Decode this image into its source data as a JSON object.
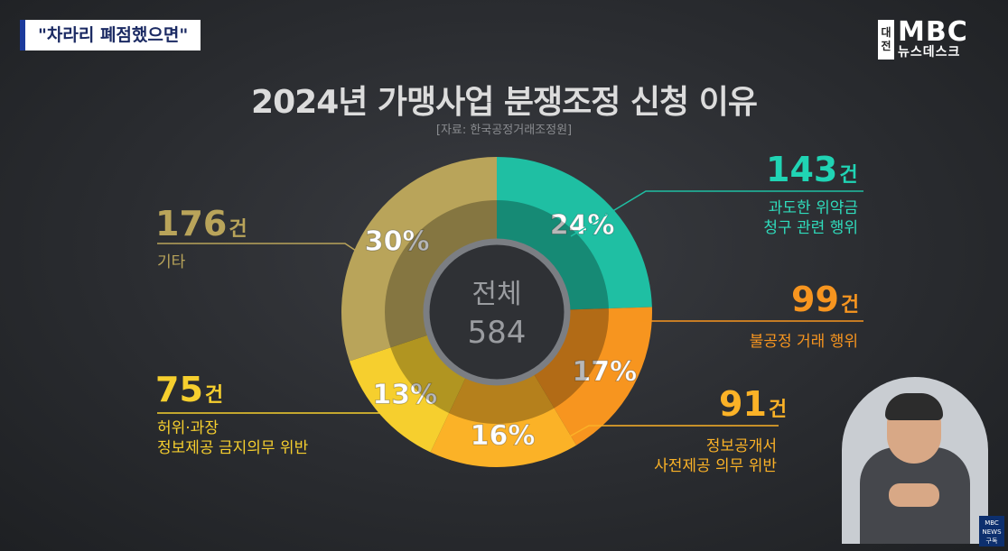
{
  "caption": "\"차라리 폐점했으면\"",
  "logo": {
    "region": [
      "대",
      "전"
    ],
    "brand": "MBC",
    "program": "뉴스데스크"
  },
  "chart_data": {
    "type": "pie",
    "title": "2024년 가맹사업 분쟁조정 신청 이유",
    "source": "[자료: 한국공정거래조정원]",
    "center_label": "전체",
    "total": 584,
    "slices": [
      {
        "label_lines": [
          "과도한 위약금",
          "청구 관련 행위"
        ],
        "count": 143,
        "count_text": "143",
        "percent": 24,
        "color": "#1fbfa3"
      },
      {
        "label_lines": [
          "불공정 거래 행위"
        ],
        "count": 99,
        "count_text": "99",
        "percent": 17,
        "color": "#f7951f"
      },
      {
        "label_lines": [
          "정보공개서",
          "사전제공 의무 위반"
        ],
        "count": 91,
        "count_text": "91",
        "percent": 16,
        "color": "#fbb227"
      },
      {
        "label_lines": [
          "허위·과장",
          "정보제공 금지의무 위반"
        ],
        "count": 75,
        "count_text": "75",
        "percent": 13,
        "color": "#f6cf2e"
      },
      {
        "label_lines": [
          "기타"
        ],
        "count": 176,
        "count_text": "176",
        "percent": 30,
        "color": "#b9a45a"
      }
    ],
    "unit": "건"
  },
  "corner_badge": {
    "line1": "MBC",
    "line2": "NEWS",
    "line3": "구독"
  }
}
